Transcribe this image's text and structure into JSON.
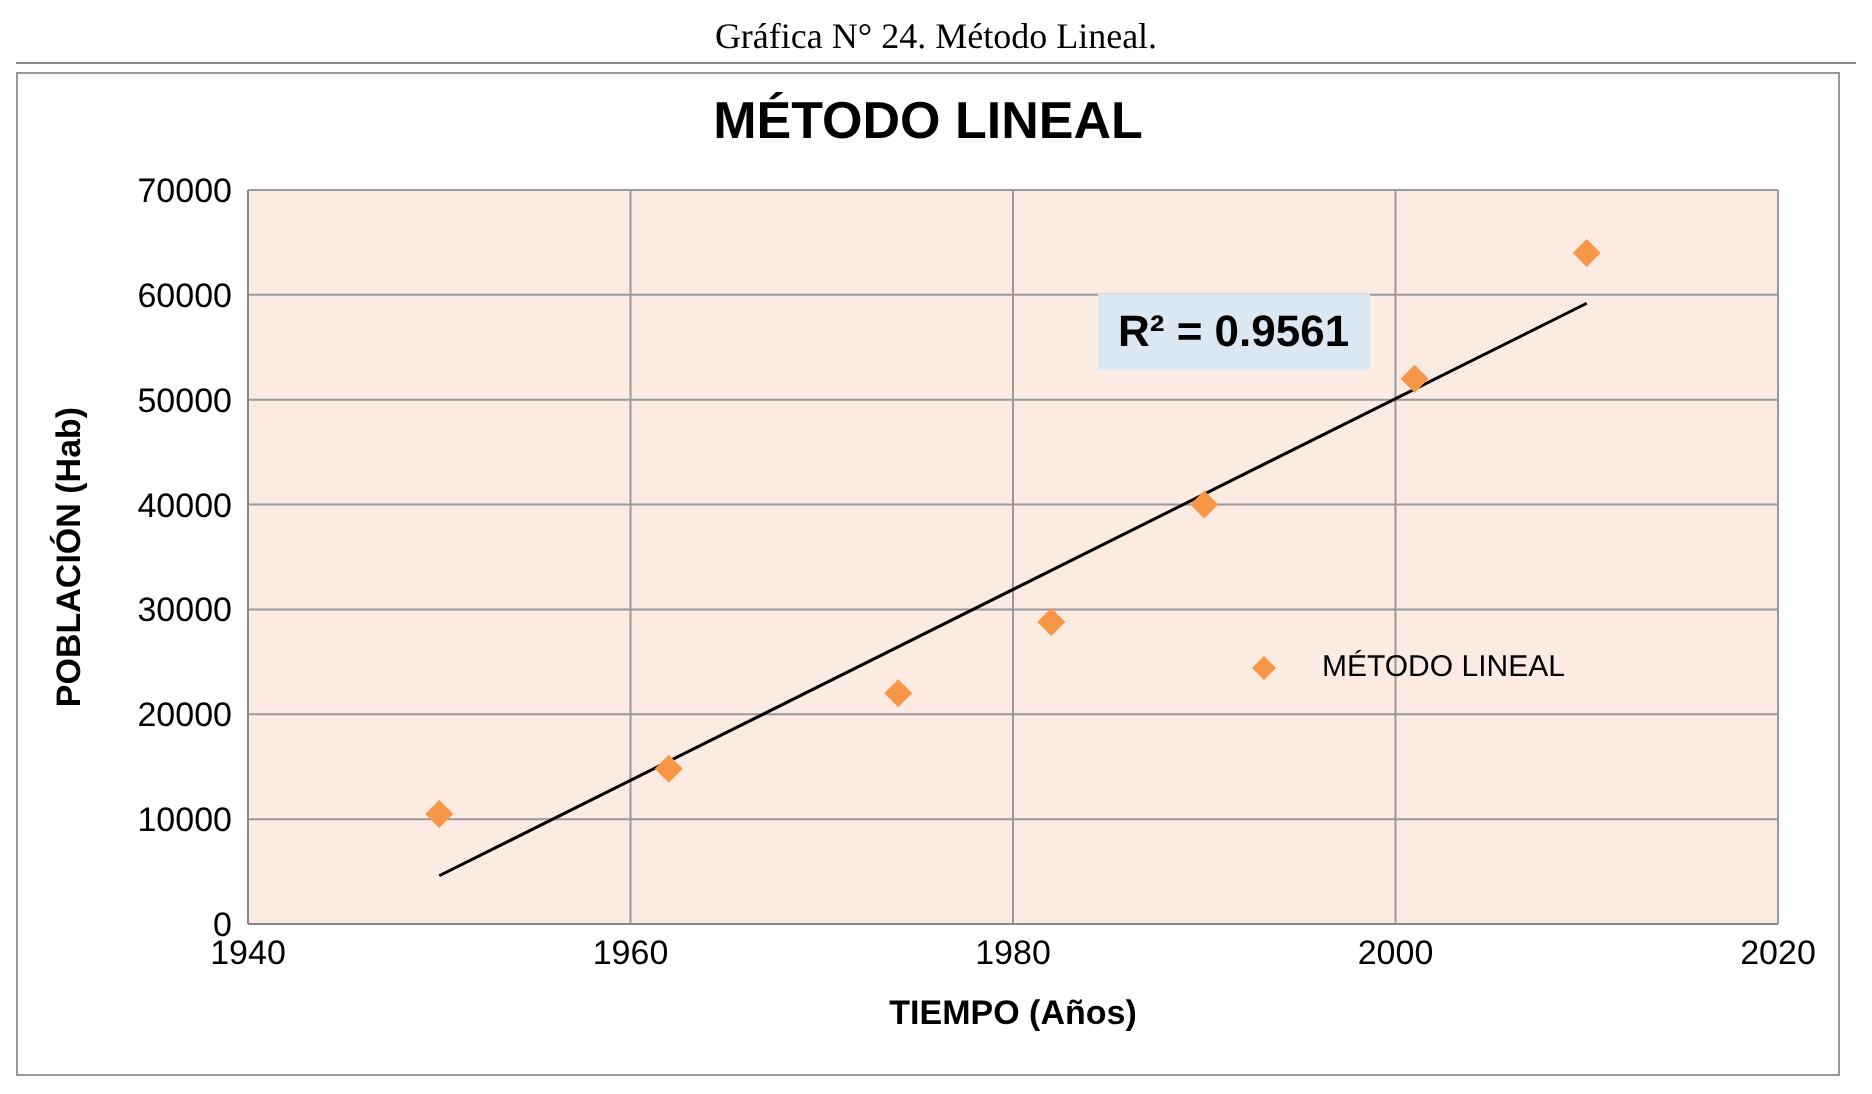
{
  "chart_data": {
    "type": "scatter",
    "title": "MÉTODO LINEAL",
    "xlabel": "TIEMPO (Años)",
    "ylabel": "POBLACIÓN (Hab)",
    "annotations": [
      "Gráfica N° 24. Método Lineal.",
      "R² = 0.9561"
    ],
    "x": [
      1950,
      1962,
      1974,
      1982,
      1990,
      2001,
      2010
    ],
    "series": [
      {
        "name": "MÉTODO LINEAL",
        "color": "#f79646",
        "marker": "diamond",
        "values": [
          10500,
          14800,
          22000,
          28800,
          40000,
          52000,
          64000
        ]
      },
      {
        "type": "line",
        "color": "#000000",
        "marker": "none",
        "line_style": "solid",
        "x": [
          1950,
          2010
        ],
        "values": [
          4600,
          59200
        ]
      }
    ],
    "xlim": [
      1940,
      2020
    ],
    "xticks": [
      1940,
      1960,
      1980,
      2000,
      2020
    ],
    "ylim": [
      0,
      70000
    ],
    "yticks": [
      0,
      10000,
      20000,
      30000,
      40000,
      50000,
      60000,
      70000
    ],
    "grid": true,
    "legend": "right"
  }
}
